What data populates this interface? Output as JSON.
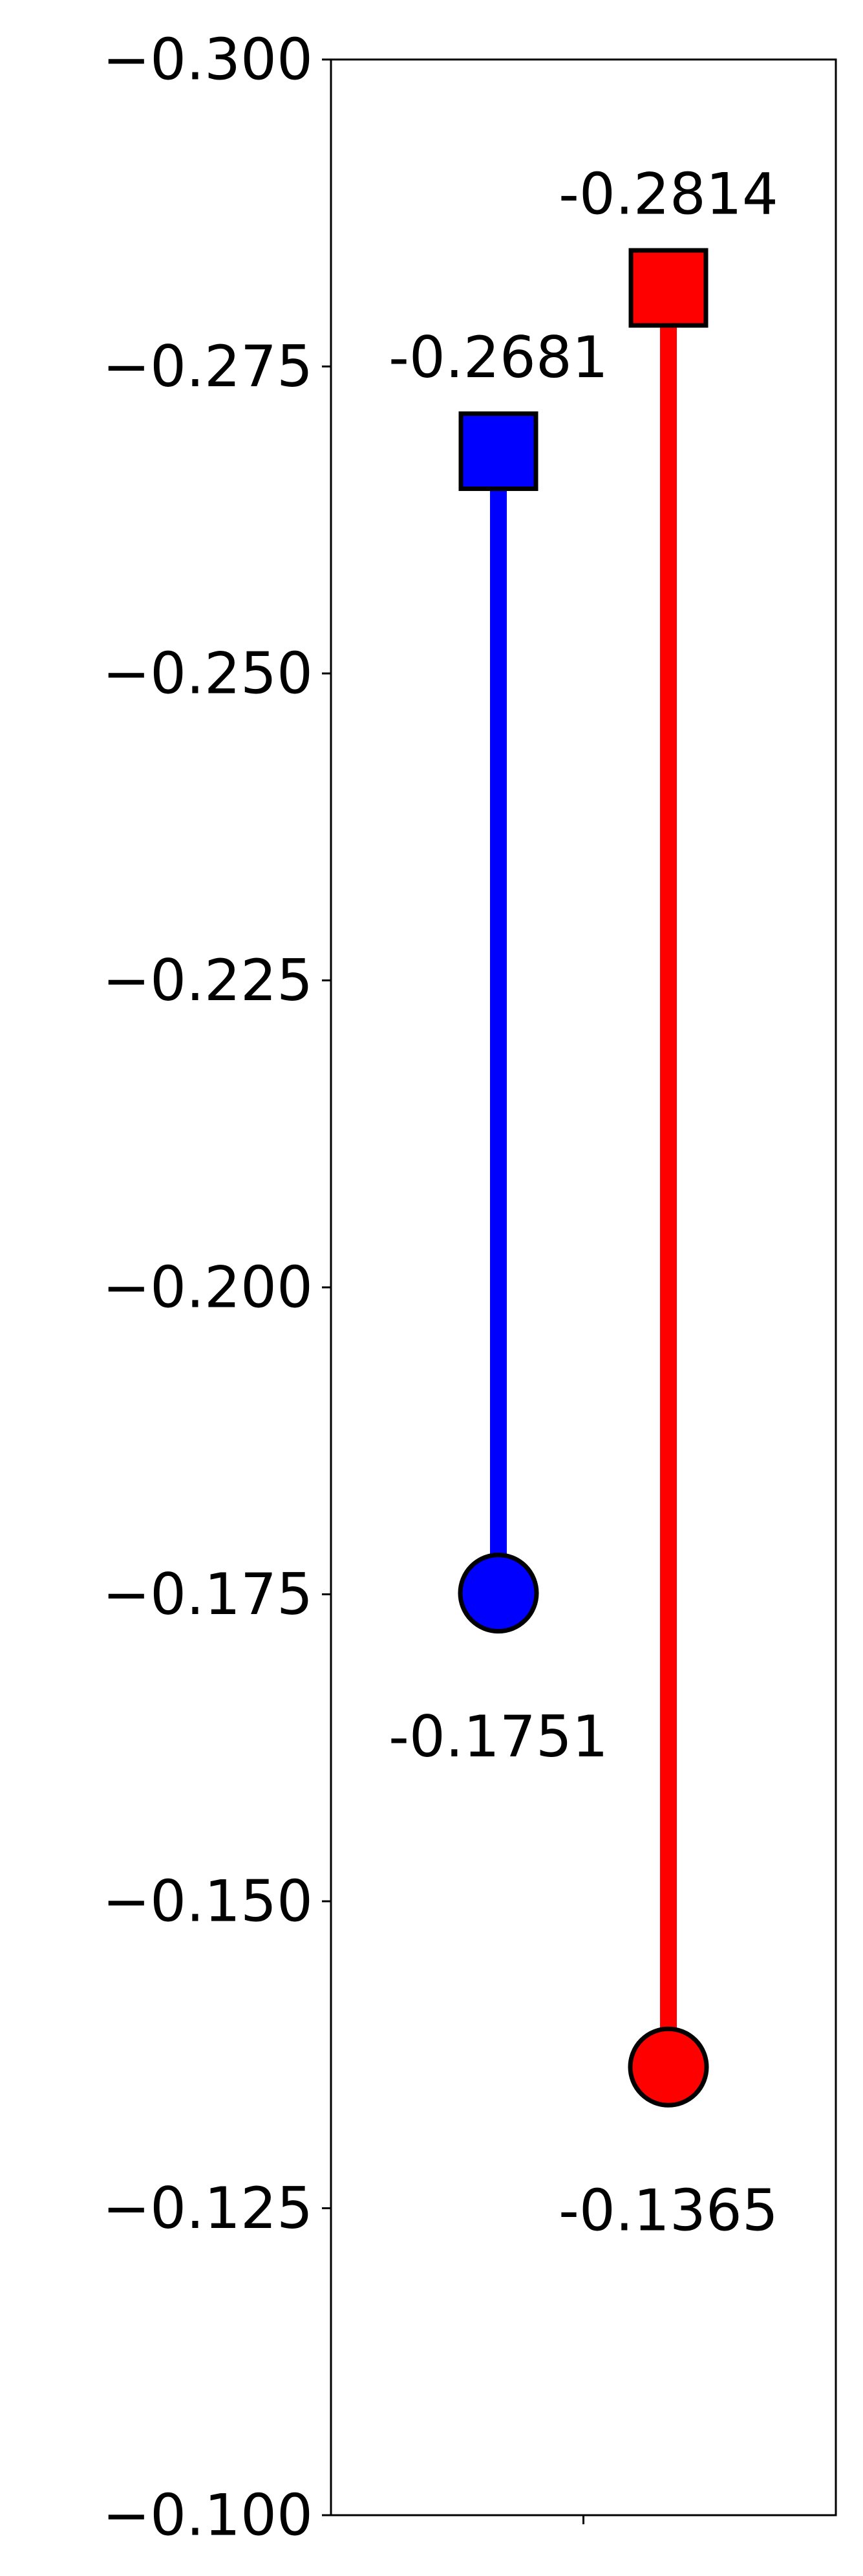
{
  "chart_data": {
    "type": "scatter",
    "title": "",
    "xlabel": "",
    "ylabel": "",
    "ylim": [
      -0.3,
      -0.1
    ],
    "y_inverted": true,
    "grid": false,
    "legend": "none",
    "yticks": [
      -0.3,
      -0.275,
      -0.25,
      -0.225,
      -0.2,
      -0.175,
      -0.15,
      -0.125,
      -0.1
    ],
    "ytick_labels": [
      "−0.300",
      "−0.275",
      "−0.250",
      "−0.225",
      "−0.200",
      "−0.175",
      "−0.150",
      "−0.125",
      "−0.100"
    ],
    "xticks": [
      ""
    ],
    "series": [
      {
        "color": "#0000ff",
        "start": {
          "value": -0.1751,
          "label": "-0.1751",
          "marker": "circle"
        },
        "end": {
          "value": -0.2681,
          "label": "-0.2681",
          "marker": "square"
        }
      },
      {
        "color": "#ff0000",
        "start": {
          "value": -0.1365,
          "label": "-0.1365",
          "marker": "circle"
        },
        "end": {
          "value": -0.2814,
          "label": "-0.2814",
          "marker": "square"
        }
      }
    ]
  }
}
